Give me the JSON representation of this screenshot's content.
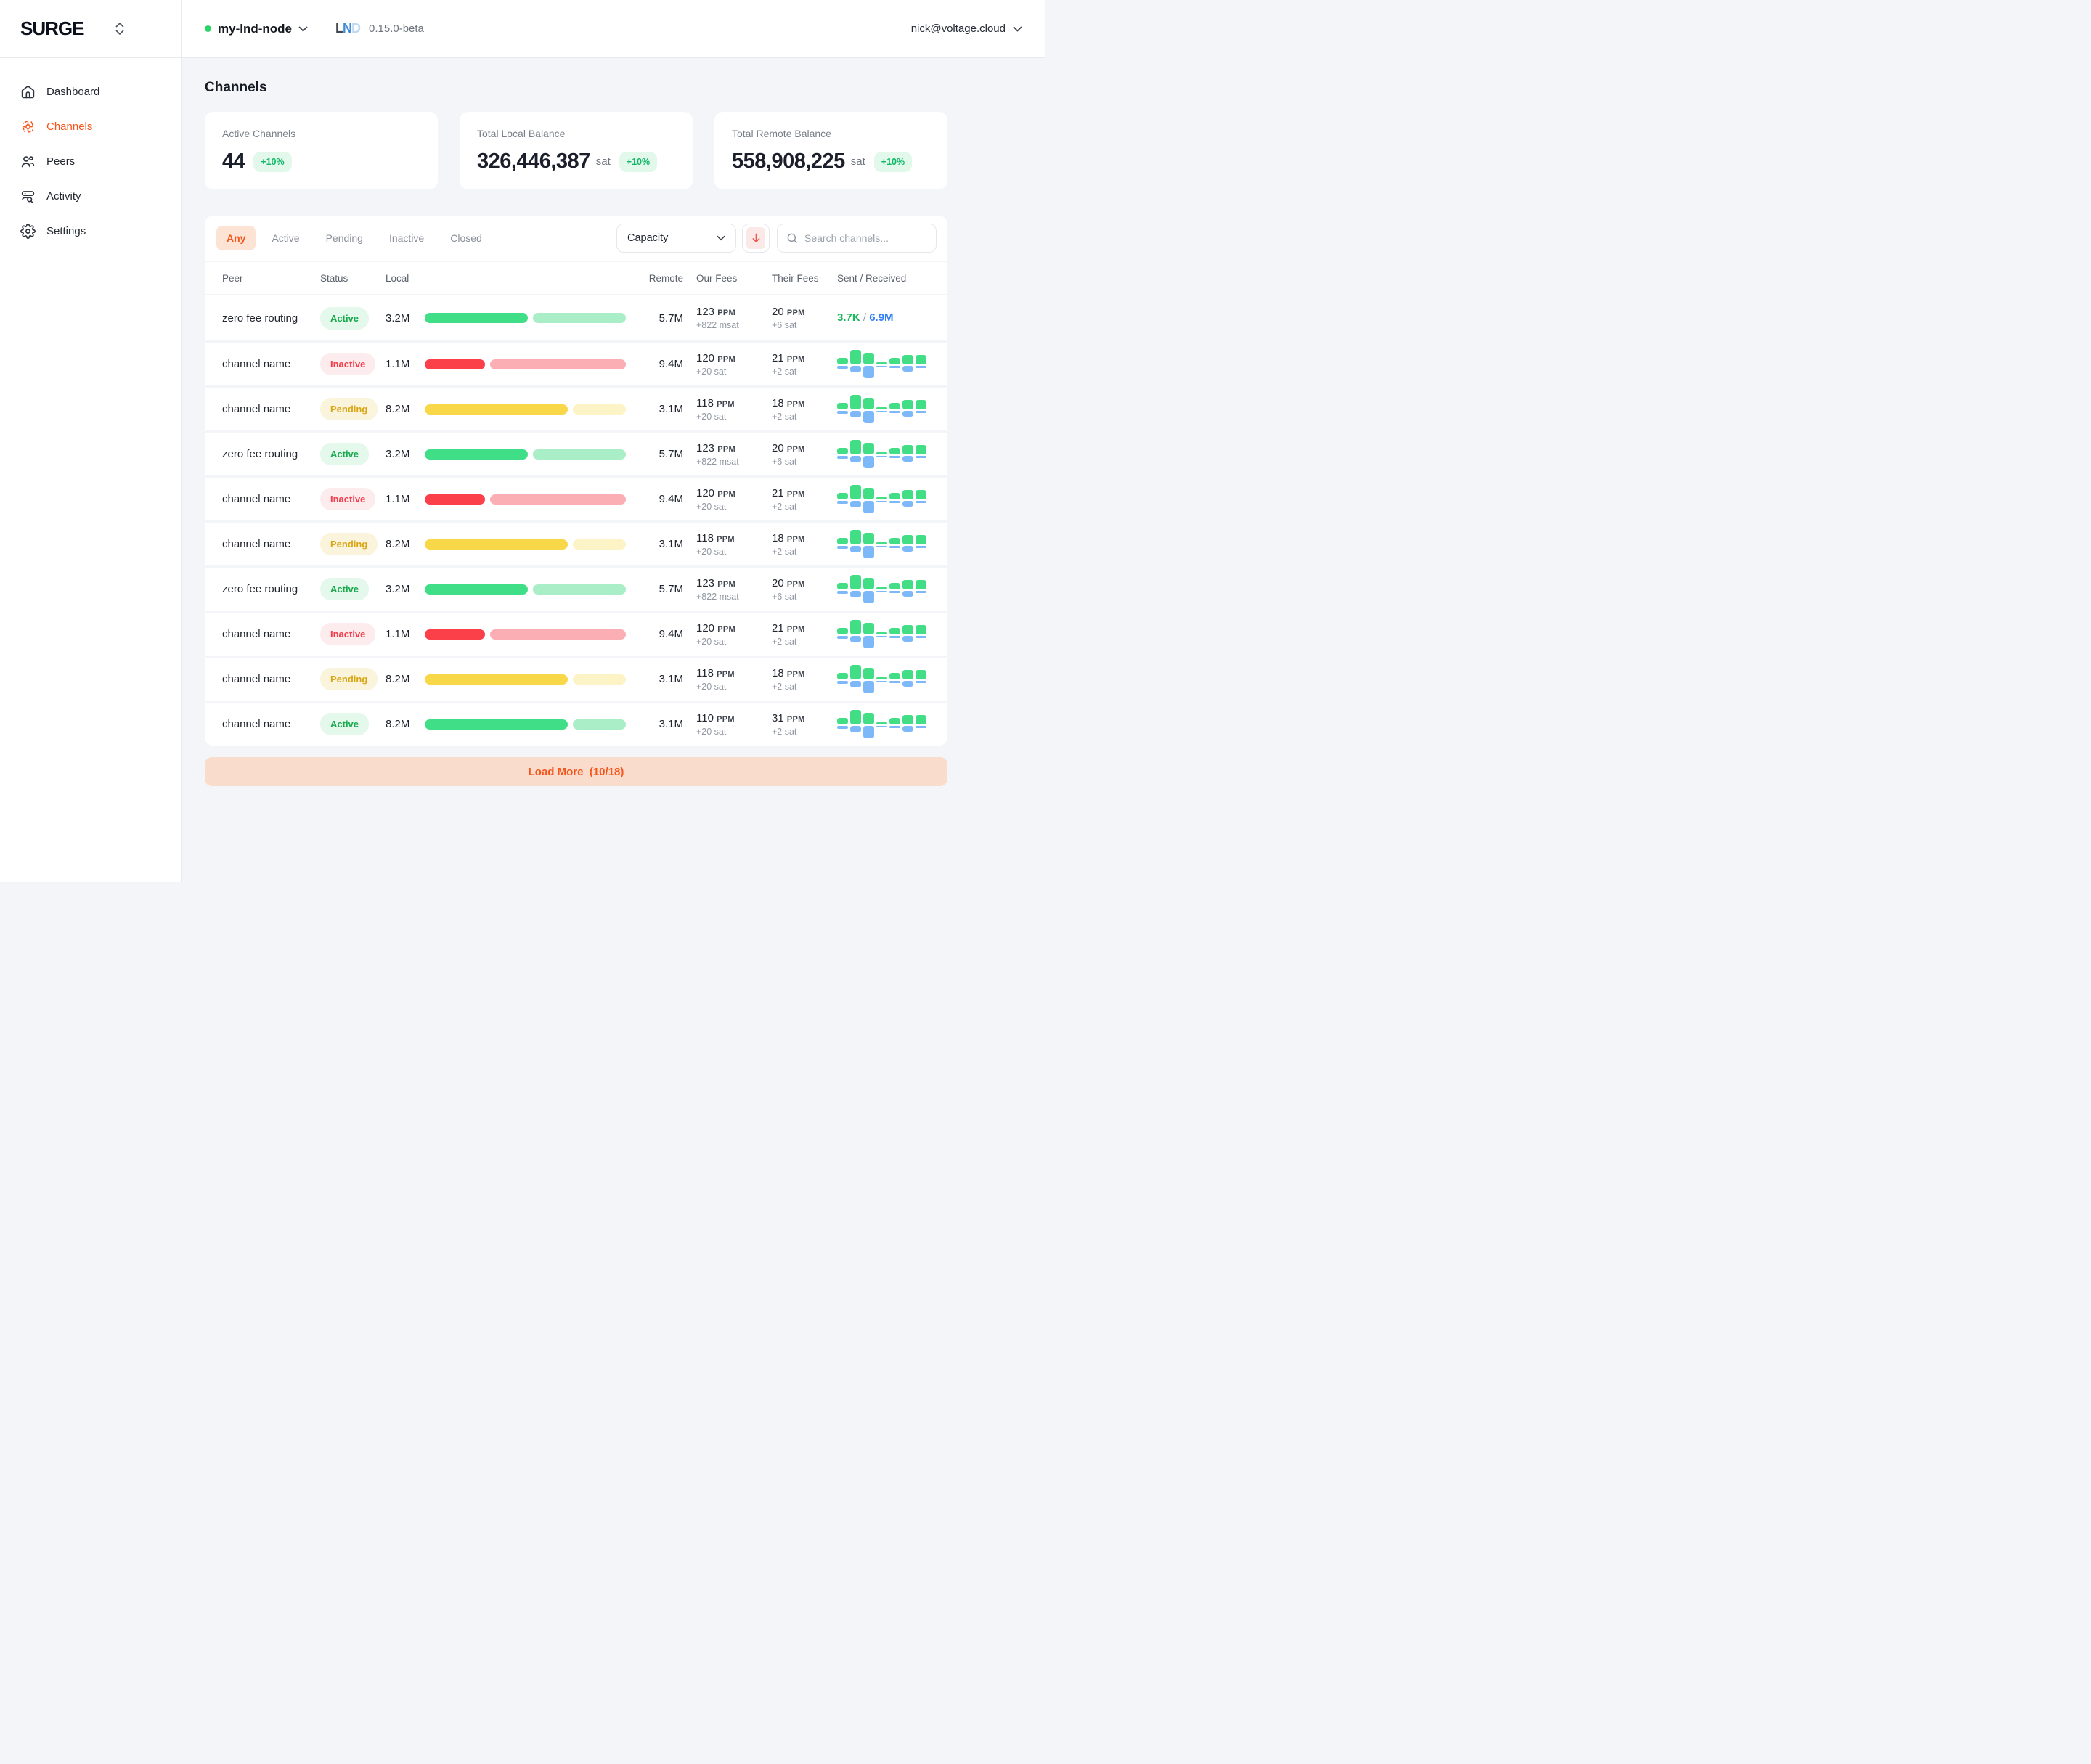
{
  "brand": {
    "logo_text": "SURGE"
  },
  "topbar": {
    "node_name": "my-lnd-node",
    "node_status_color": "#2BD568",
    "lnd_logo_letters": {
      "l": "L",
      "n": "N",
      "d": "D"
    },
    "node_version": "0.15.0-beta",
    "user_email": "nick@voltage.cloud"
  },
  "sidebar": {
    "items": [
      {
        "label": "Dashboard",
        "active": false
      },
      {
        "label": "Channels",
        "active": true
      },
      {
        "label": "Peers",
        "active": false
      },
      {
        "label": "Activity",
        "active": false
      },
      {
        "label": "Settings",
        "active": false
      }
    ]
  },
  "page": {
    "title": "Channels"
  },
  "stats": [
    {
      "label": "Active Channels",
      "value": "44",
      "unit": "",
      "delta": "+10%"
    },
    {
      "label": "Total Local Balance",
      "value": "326,446,387",
      "unit": "sat",
      "delta": "+10%"
    },
    {
      "label": "Total Remote Balance",
      "value": "558,908,225",
      "unit": "sat",
      "delta": "+10%"
    }
  ],
  "filters": {
    "tabs": [
      {
        "label": "Any",
        "active": true
      },
      {
        "label": "Active",
        "active": false
      },
      {
        "label": "Pending",
        "active": false
      },
      {
        "label": "Inactive",
        "active": false
      },
      {
        "label": "Closed",
        "active": false
      }
    ],
    "sort_by": "Capacity",
    "search_placeholder": "Search channels..."
  },
  "table": {
    "headers": [
      "Peer",
      "Status",
      "Local",
      "Remote",
      "Our Fees",
      "Their Fees",
      "Sent / Received"
    ],
    "rows": [
      {
        "peer": "zero fee routing",
        "status": "Active",
        "local": "3.2M",
        "local_pct": 51,
        "remote_pct": 46,
        "remote": "5.7M",
        "our_fee_value": "123",
        "our_fee_unit": "PPM",
        "our_fee_sub": "+822 msat",
        "their_fee_value": "20",
        "their_fee_unit": "PPM",
        "their_fee_sub": "+6 sat",
        "sent_received": {
          "display": "text",
          "sent": "3.7K",
          "separator": " / ",
          "received": "6.9M"
        }
      },
      {
        "peer": "channel name",
        "status": "Inactive",
        "local": "1.1M",
        "local_pct": 30,
        "remote_pct": 67,
        "remote": "9.4M",
        "our_fee_value": "120",
        "our_fee_unit": "PPM",
        "our_fee_sub": "+20 sat",
        "their_fee_value": "21",
        "their_fee_unit": "PPM",
        "their_fee_sub": "+2 sat",
        "sent_received": {
          "display": "chart"
        }
      },
      {
        "peer": "channel name",
        "status": "Pending",
        "local": "8.2M",
        "local_pct": 71,
        "remote_pct": 26,
        "remote": "3.1M",
        "our_fee_value": "118",
        "our_fee_unit": "PPM",
        "our_fee_sub": "+20 sat",
        "their_fee_value": "18",
        "their_fee_unit": "PPM",
        "their_fee_sub": "+2 sat",
        "sent_received": {
          "display": "chart"
        }
      },
      {
        "peer": "zero fee routing",
        "status": "Active",
        "local": "3.2M",
        "local_pct": 51,
        "remote_pct": 46,
        "remote": "5.7M",
        "our_fee_value": "123",
        "our_fee_unit": "PPM",
        "our_fee_sub": "+822 msat",
        "their_fee_value": "20",
        "their_fee_unit": "PPM",
        "their_fee_sub": "+6 sat",
        "sent_received": {
          "display": "chart"
        }
      },
      {
        "peer": "channel name",
        "status": "Inactive",
        "local": "1.1M",
        "local_pct": 30,
        "remote_pct": 67,
        "remote": "9.4M",
        "our_fee_value": "120",
        "our_fee_unit": "PPM",
        "our_fee_sub": "+20 sat",
        "their_fee_value": "21",
        "their_fee_unit": "PPM",
        "their_fee_sub": "+2 sat",
        "sent_received": {
          "display": "chart"
        }
      },
      {
        "peer": "channel name",
        "status": "Pending",
        "local": "8.2M",
        "local_pct": 71,
        "remote_pct": 26,
        "remote": "3.1M",
        "our_fee_value": "118",
        "our_fee_unit": "PPM",
        "our_fee_sub": "+20 sat",
        "their_fee_value": "18",
        "their_fee_unit": "PPM",
        "their_fee_sub": "+2 sat",
        "sent_received": {
          "display": "chart"
        }
      },
      {
        "peer": "zero fee routing",
        "status": "Active",
        "local": "3.2M",
        "local_pct": 51,
        "remote_pct": 46,
        "remote": "5.7M",
        "our_fee_value": "123",
        "our_fee_unit": "PPM",
        "our_fee_sub": "+822 msat",
        "their_fee_value": "20",
        "their_fee_unit": "PPM",
        "their_fee_sub": "+6 sat",
        "sent_received": {
          "display": "chart"
        }
      },
      {
        "peer": "channel name",
        "status": "Inactive",
        "local": "1.1M",
        "local_pct": 30,
        "remote_pct": 67,
        "remote": "9.4M",
        "our_fee_value": "120",
        "our_fee_unit": "PPM",
        "our_fee_sub": "+20 sat",
        "their_fee_value": "21",
        "their_fee_unit": "PPM",
        "their_fee_sub": "+2 sat",
        "sent_received": {
          "display": "chart"
        }
      },
      {
        "peer": "channel name",
        "status": "Pending",
        "local": "8.2M",
        "local_pct": 71,
        "remote_pct": 26,
        "remote": "3.1M",
        "our_fee_value": "118",
        "our_fee_unit": "PPM",
        "our_fee_sub": "+20 sat",
        "their_fee_value": "18",
        "their_fee_unit": "PPM",
        "their_fee_sub": "+2 sat",
        "sent_received": {
          "display": "chart"
        }
      },
      {
        "peer": "channel name",
        "status": "Active",
        "local": "8.2M",
        "local_pct": 71,
        "remote_pct": 26,
        "remote": "3.1M",
        "our_fee_value": "110",
        "our_fee_unit": "PPM",
        "our_fee_sub": "+20 sat",
        "their_fee_value": "31",
        "their_fee_unit": "PPM",
        "their_fee_sub": "+2 sat",
        "sent_received": {
          "display": "chart"
        }
      }
    ]
  },
  "sent_received_chart": {
    "type": "bar",
    "sent_bars": [
      9,
      20,
      16,
      3,
      9,
      13,
      13
    ],
    "received_bars": [
      4,
      9,
      17,
      2,
      3,
      8,
      3
    ],
    "sent_color": "#41DE86",
    "received_color": "#7DB8F8"
  },
  "load_more": {
    "label": "Load More",
    "progress": "(10/18)"
  },
  "colors": {
    "accent_orange": "#F5551B",
    "status_active": "#17A94C",
    "status_inactive": "#F43C4A",
    "status_pending": "#D9A513",
    "delta_green": "#0FB768",
    "sent_green": "#1CB85C",
    "received_blue": "#2F80F7"
  }
}
